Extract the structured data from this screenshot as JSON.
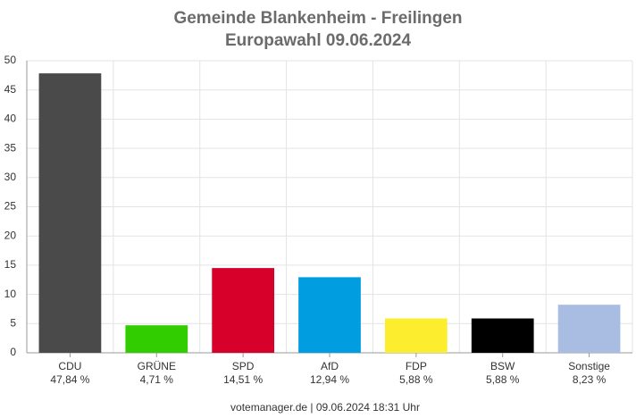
{
  "chart_data": {
    "type": "bar",
    "title": "Gemeinde Blankenheim - Freilingen",
    "subtitle": "Europawahl 09.06.2024",
    "categories": [
      "CDU",
      "GRÜNE",
      "SPD",
      "AfD",
      "FDP",
      "BSW",
      "Sonstige"
    ],
    "values": [
      47.84,
      4.71,
      14.51,
      12.94,
      5.88,
      5.88,
      8.23
    ],
    "value_labels": [
      "47,84 %",
      "4,71 %",
      "14,51 %",
      "12,94 %",
      "5,88 %",
      "5,88 %",
      "8,23 %"
    ],
    "colors": [
      "#4a4a4a",
      "#32cd00",
      "#d7002b",
      "#009ee0",
      "#fced2f",
      "#000000",
      "#a9bde3"
    ],
    "ylim": [
      0,
      50
    ],
    "yticks": [
      0,
      5,
      10,
      15,
      20,
      25,
      30,
      35,
      40,
      45,
      50
    ],
    "grid": true,
    "source": "votemanager.de | 09.06.2024 18:31 Uhr"
  }
}
